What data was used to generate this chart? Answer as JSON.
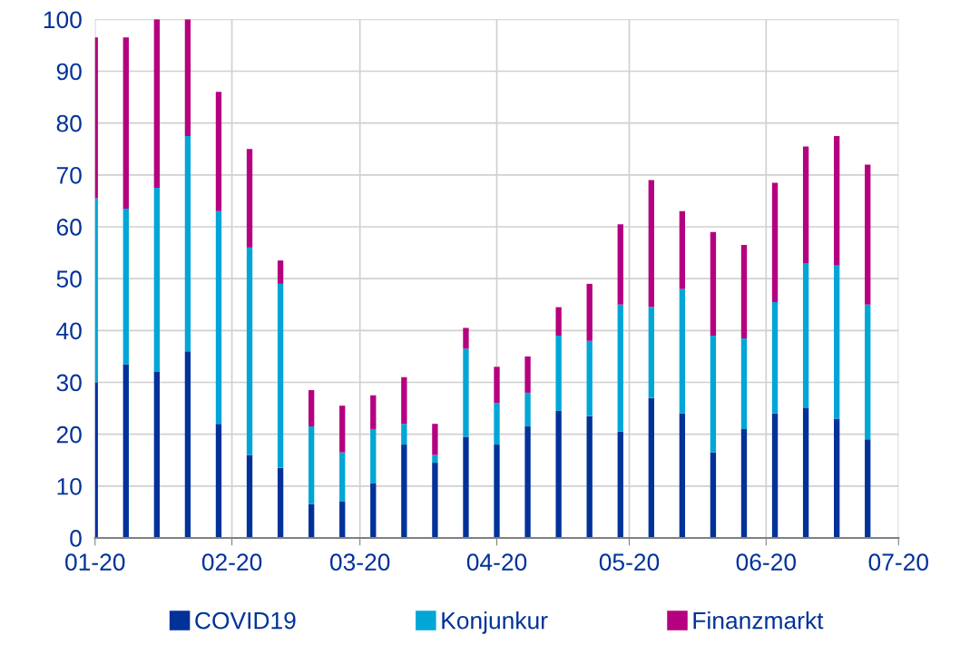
{
  "chart_data": {
    "type": "bar",
    "stacked": true,
    "x": [
      "2020-01-01",
      "2020-01-08",
      "2020-01-15",
      "2020-01-22",
      "2020-01-29",
      "2020-02-05",
      "2020-02-12",
      "2020-02-19",
      "2020-02-26",
      "2020-03-04",
      "2020-03-11",
      "2020-03-18",
      "2020-03-25",
      "2020-04-01",
      "2020-04-08",
      "2020-04-15",
      "2020-04-22",
      "2020-04-29",
      "2020-05-06",
      "2020-05-13",
      "2020-05-20",
      "2020-05-27",
      "2020-06-03",
      "2020-06-10",
      "2020-06-17",
      "2020-06-24"
    ],
    "series": [
      {
        "name": "COVID19",
        "color": "#003299",
        "values": [
          30,
          33.5,
          32,
          36,
          22,
          16,
          13.5,
          6.5,
          7,
          10.5,
          18,
          14.5,
          19.5,
          18,
          21.5,
          24.5,
          23.5,
          20.5,
          27,
          24,
          16.5,
          21,
          24,
          25,
          23,
          19
        ]
      },
      {
        "name": "Konjunkur",
        "color": "#00a6d6",
        "values": [
          35.5,
          30,
          35.5,
          41.5,
          41,
          40,
          35.5,
          15,
          9.5,
          10.5,
          4,
          1.5,
          17,
          8,
          6.5,
          14.5,
          14.5,
          24.5,
          17.5,
          24,
          22.5,
          17.5,
          21.5,
          28,
          29.5,
          26
        ]
      },
      {
        "name": "Finanzmarkt",
        "color": "#b5007f",
        "values": [
          31,
          33,
          32.5,
          22.5,
          23,
          19,
          4.5,
          7,
          9,
          6.5,
          9,
          6,
          4,
          7,
          7,
          5.5,
          11,
          15.5,
          24.5,
          15,
          20,
          18,
          23,
          22.5,
          25,
          27
        ]
      }
    ],
    "xlim": [
      "2020-01-01",
      "2020-07-01"
    ],
    "xticks": [
      {
        "value": "2020-01-01",
        "label": "01-20"
      },
      {
        "value": "2020-02-01",
        "label": "02-20"
      },
      {
        "value": "2020-03-01",
        "label": "03-20"
      },
      {
        "value": "2020-04-01",
        "label": "04-20"
      },
      {
        "value": "2020-05-01",
        "label": "05-20"
      },
      {
        "value": "2020-06-01",
        "label": "06-20"
      },
      {
        "value": "2020-07-01",
        "label": "07-20"
      }
    ],
    "ylim": [
      0,
      100
    ],
    "yticks": [
      0,
      10,
      20,
      30,
      40,
      50,
      60,
      70,
      80,
      90,
      100
    ],
    "grid": true,
    "legend": "bottom"
  }
}
